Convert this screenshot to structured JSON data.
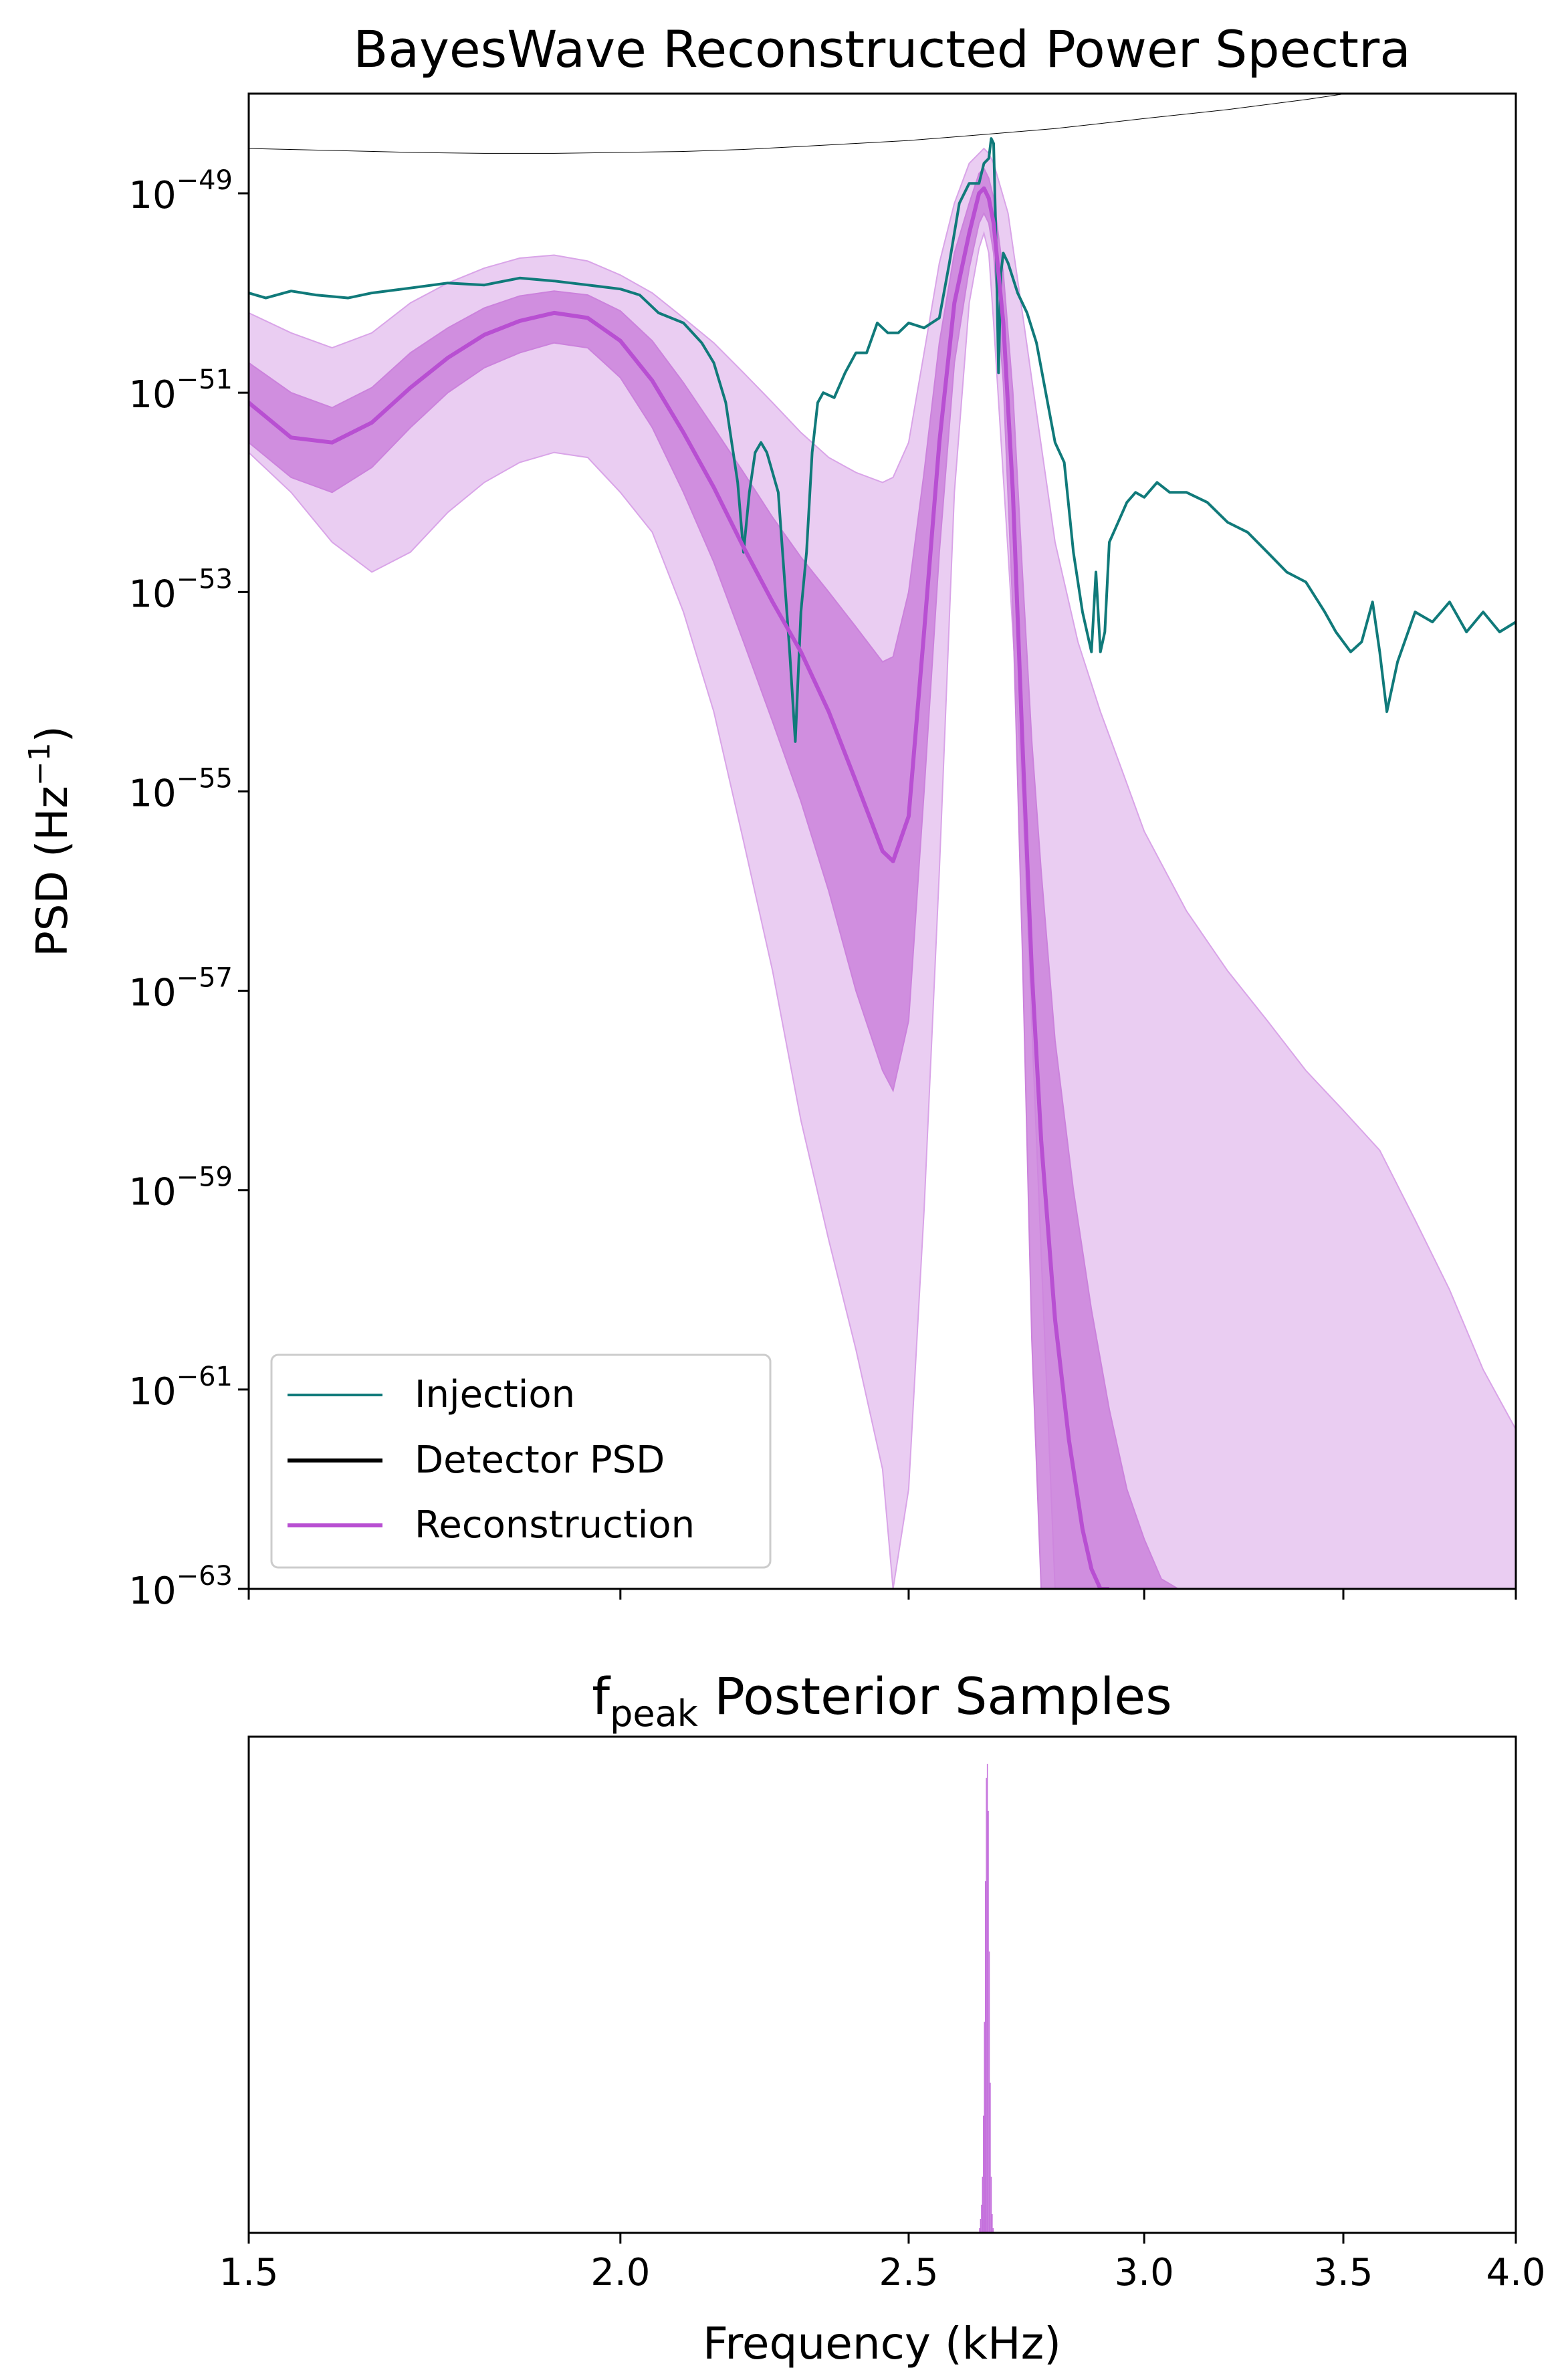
{
  "chart_data": [
    {
      "type": "line",
      "title": "BayesWave Reconstructed Power Spectra",
      "xlabel": "",
      "ylabel": "PSD (Hz⁻¹)",
      "ylabel_main": "PSD (Hz",
      "ylabel_exp": "−1",
      "ylabel_close": ")",
      "xscale": "log",
      "yscale": "log",
      "xlim": [
        1.5,
        4.0
      ],
      "ylim_log10": [
        -63,
        -48
      ],
      "y_ticks": [
        {
          "exp": -49,
          "base": "10",
          "sup": "−49"
        },
        {
          "exp": -51,
          "base": "10",
          "sup": "−51"
        },
        {
          "exp": -53,
          "base": "10",
          "sup": "−53"
        },
        {
          "exp": -55,
          "base": "10",
          "sup": "−55"
        },
        {
          "exp": -57,
          "base": "10",
          "sup": "−57"
        },
        {
          "exp": -59,
          "base": "10",
          "sup": "−59"
        },
        {
          "exp": -61,
          "base": "10",
          "sup": "−61"
        },
        {
          "exp": -63,
          "base": "10",
          "sup": "−63"
        }
      ],
      "legend_position": "lower-left",
      "legend": [
        {
          "label": "Injection",
          "color": "#107a7a",
          "lw": 4
        },
        {
          "label": "Detector PSD",
          "color": "#000000",
          "lw": 6
        },
        {
          "label": "Reconstruction",
          "color": "#b84fd2",
          "lw": 6
        }
      ],
      "series": [
        {
          "name": "Detector PSD",
          "color": "#000000",
          "x": [
            1.5,
            1.6,
            1.7,
            1.8,
            1.9,
            2.0,
            2.1,
            2.2,
            2.3,
            2.4,
            2.5,
            2.6,
            2.7,
            2.8,
            2.9,
            3.0,
            3.2,
            3.4,
            3.6,
            3.8,
            4.0
          ],
          "log10_y": [
            -48.55,
            -48.57,
            -48.59,
            -48.6,
            -48.6,
            -48.59,
            -48.58,
            -48.56,
            -48.53,
            -48.5,
            -48.47,
            -48.43,
            -48.39,
            -48.35,
            -48.3,
            -48.25,
            -48.16,
            -48.06,
            -47.95,
            -47.84,
            -47.72
          ]
        },
        {
          "name": "Injection",
          "color": "#107a7a",
          "x": [
            1.5,
            1.52,
            1.55,
            1.58,
            1.62,
            1.65,
            1.7,
            1.75,
            1.8,
            1.85,
            1.9,
            1.95,
            2.0,
            2.03,
            2.06,
            2.1,
            2.13,
            2.15,
            2.17,
            2.19,
            2.2,
            2.21,
            2.22,
            2.23,
            2.24,
            2.25,
            2.26,
            2.27,
            2.28,
            2.29,
            2.3,
            2.31,
            2.315,
            2.32,
            2.33,
            2.34,
            2.36,
            2.38,
            2.4,
            2.42,
            2.44,
            2.46,
            2.48,
            2.5,
            2.53,
            2.56,
            2.58,
            2.6,
            2.62,
            2.64,
            2.65,
            2.66,
            2.665,
            2.67,
            2.675,
            2.68,
            2.685,
            2.69,
            2.7,
            2.72,
            2.74,
            2.76,
            2.78,
            2.8,
            2.82,
            2.84,
            2.86,
            2.88,
            2.89,
            2.9,
            2.91,
            2.92,
            2.94,
            2.96,
            2.98,
            3.0,
            3.03,
            3.06,
            3.1,
            3.15,
            3.2,
            3.25,
            3.3,
            3.35,
            3.4,
            3.45,
            3.48,
            3.52,
            3.55,
            3.58,
            3.6,
            3.62,
            3.65,
            3.7,
            3.75,
            3.8,
            3.85,
            3.9,
            3.95,
            4.0
          ],
          "log10_y": [
            -50.0,
            -50.05,
            -49.98,
            -50.02,
            -50.05,
            -50.0,
            -49.95,
            -49.9,
            -49.92,
            -49.85,
            -49.88,
            -49.92,
            -49.96,
            -50.02,
            -50.2,
            -50.3,
            -50.5,
            -50.7,
            -51.1,
            -51.9,
            -52.6,
            -52.0,
            -51.6,
            -51.5,
            -51.6,
            -51.8,
            -52.0,
            -52.8,
            -53.6,
            -54.5,
            -53.2,
            -52.6,
            -52.1,
            -51.6,
            -51.1,
            -51.0,
            -51.05,
            -50.8,
            -50.6,
            -50.6,
            -50.3,
            -50.4,
            -50.4,
            -50.3,
            -50.35,
            -50.25,
            -49.7,
            -49.1,
            -48.9,
            -48.9,
            -48.7,
            -48.65,
            -48.45,
            -48.5,
            -49.5,
            -50.8,
            -49.8,
            -49.6,
            -49.7,
            -50.0,
            -50.2,
            -50.5,
            -51.0,
            -51.5,
            -51.7,
            -52.6,
            -53.2,
            -53.6,
            -52.8,
            -53.6,
            -53.4,
            -52.5,
            -52.3,
            -52.1,
            -52.0,
            -52.05,
            -51.9,
            -52.0,
            -52.0,
            -52.1,
            -52.3,
            -52.4,
            -52.6,
            -52.8,
            -52.9,
            -53.2,
            -53.4,
            -53.6,
            -53.5,
            -53.1,
            -53.6,
            -54.2,
            -53.7,
            -53.2,
            -53.3,
            -53.1,
            -53.4,
            -53.2,
            -53.4,
            -53.3
          ],
          "lw": 4
        },
        {
          "name": "Reconstruction",
          "color": "#b84fd2",
          "x": [
            1.5,
            1.55,
            1.6,
            1.65,
            1.7,
            1.75,
            1.8,
            1.85,
            1.9,
            1.95,
            2.0,
            2.05,
            2.1,
            2.15,
            2.2,
            2.25,
            2.3,
            2.35,
            2.4,
            2.45,
            2.47,
            2.5,
            2.53,
            2.56,
            2.59,
            2.62,
            2.64,
            2.65,
            2.66,
            2.67,
            2.69,
            2.71,
            2.73,
            2.75,
            2.77,
            2.8,
            2.83,
            2.86,
            2.88,
            2.9,
            2.92
          ],
          "log10_y": [
            -51.1,
            -51.45,
            -51.5,
            -51.3,
            -50.95,
            -50.65,
            -50.42,
            -50.28,
            -50.2,
            -50.25,
            -50.48,
            -50.88,
            -51.4,
            -51.95,
            -52.55,
            -53.1,
            -53.6,
            -54.2,
            -54.9,
            -55.6,
            -55.7,
            -55.25,
            -53.4,
            -51.5,
            -50.1,
            -49.4,
            -49.0,
            -48.95,
            -49.05,
            -49.3,
            -50.3,
            -52.0,
            -54.5,
            -56.8,
            -58.5,
            -60.3,
            -61.5,
            -62.4,
            -62.8,
            -63.0,
            -63.0
          ],
          "lw": 6
        }
      ],
      "bands": [
        {
          "name": "90% credible interval",
          "color": "#d9a4e8",
          "x": [
            1.5,
            1.55,
            1.6,
            1.65,
            1.7,
            1.75,
            1.8,
            1.85,
            1.9,
            1.95,
            2.0,
            2.05,
            2.1,
            2.15,
            2.2,
            2.25,
            2.3,
            2.35,
            2.4,
            2.45,
            2.47,
            2.5,
            2.53,
            2.56,
            2.59,
            2.62,
            2.64,
            2.65,
            2.66,
            2.67,
            2.7,
            2.73,
            2.76,
            2.8,
            2.85,
            2.9,
            2.95,
            3.0,
            3.1,
            3.2,
            3.3,
            3.4,
            3.5,
            3.6,
            3.7,
            3.8,
            3.9,
            4.0
          ],
          "log10_upper": [
            -50.2,
            -50.4,
            -50.55,
            -50.4,
            -50.1,
            -49.9,
            -49.75,
            -49.65,
            -49.62,
            -49.68,
            -49.82,
            -50.0,
            -50.25,
            -50.5,
            -50.8,
            -51.1,
            -51.4,
            -51.65,
            -51.8,
            -51.9,
            -51.85,
            -51.5,
            -50.6,
            -49.7,
            -49.1,
            -48.7,
            -48.6,
            -48.55,
            -48.6,
            -48.7,
            -49.2,
            -50.2,
            -51.2,
            -52.5,
            -53.5,
            -54.2,
            -54.8,
            -55.4,
            -56.2,
            -56.8,
            -57.3,
            -57.8,
            -58.2,
            -58.6,
            -59.3,
            -60.0,
            -60.8,
            -61.4
          ],
          "log10_lower": [
            -51.6,
            -52.0,
            -52.5,
            -52.8,
            -52.6,
            -52.2,
            -51.9,
            -51.7,
            -51.6,
            -51.65,
            -52.0,
            -52.4,
            -53.2,
            -54.2,
            -55.5,
            -56.8,
            -58.3,
            -59.5,
            -60.6,
            -61.8,
            -63.0,
            -62.0,
            -59.2,
            -55.8,
            -52.0,
            -50.1,
            -49.55,
            -49.4,
            -49.6,
            -50.3,
            -52.6,
            -55.0,
            -58.5,
            -63.0,
            -63.0,
            -63.0,
            -63.0,
            -63.0,
            -63.0,
            -63.0,
            -63.0,
            -63.0,
            -63.0,
            -63.0,
            -63.0,
            -63.0,
            -63.0,
            -63.0
          ]
        },
        {
          "name": "50% credible interval",
          "color": "#cb82dc",
          "x": [
            1.5,
            1.55,
            1.6,
            1.65,
            1.7,
            1.75,
            1.8,
            1.85,
            1.9,
            1.95,
            2.0,
            2.05,
            2.1,
            2.15,
            2.2,
            2.25,
            2.3,
            2.35,
            2.4,
            2.45,
            2.47,
            2.5,
            2.53,
            2.56,
            2.59,
            2.62,
            2.64,
            2.65,
            2.66,
            2.67,
            2.69,
            2.71,
            2.73,
            2.75,
            2.77,
            2.8,
            2.84,
            2.88,
            2.92,
            2.96,
            3.0,
            3.04,
            3.08
          ],
          "log10_upper": [
            -50.7,
            -51.0,
            -51.15,
            -50.95,
            -50.6,
            -50.35,
            -50.15,
            -50.03,
            -49.98,
            -50.02,
            -50.18,
            -50.48,
            -50.9,
            -51.35,
            -51.8,
            -52.25,
            -52.65,
            -53.0,
            -53.35,
            -53.7,
            -53.65,
            -53.0,
            -51.8,
            -50.5,
            -49.6,
            -49.1,
            -48.8,
            -48.75,
            -48.85,
            -49.05,
            -49.8,
            -51.0,
            -52.8,
            -54.5,
            -55.8,
            -57.5,
            -59.0,
            -60.2,
            -61.2,
            -62.0,
            -62.5,
            -62.9,
            -63.0
          ],
          "log10_lower": [
            -51.5,
            -51.85,
            -52.0,
            -51.75,
            -51.35,
            -51.0,
            -50.75,
            -50.6,
            -50.5,
            -50.55,
            -50.85,
            -51.35,
            -52.0,
            -52.7,
            -53.5,
            -54.3,
            -55.1,
            -56.0,
            -57.0,
            -57.8,
            -58.0,
            -57.3,
            -55.0,
            -52.6,
            -50.7,
            -49.75,
            -49.3,
            -49.2,
            -49.3,
            -49.6,
            -50.9,
            -53.2,
            -56.6,
            -60.5,
            -63.0,
            -63.0,
            -63.0,
            -63.0,
            -63.0,
            -63.0,
            -63.0,
            -63.0,
            -63.0
          ]
        }
      ]
    },
    {
      "type": "bar",
      "title_main": "f",
      "title_sub": "peak",
      "title_rest": " Posterior Samples",
      "xlabel": "Frequency (kHz)",
      "ylabel": "",
      "xscale": "log",
      "xlim": [
        1.5,
        4.0
      ],
      "x_ticks": [
        "1.5",
        "2.0",
        "2.5",
        "3.0",
        "3.5",
        "4.0"
      ],
      "x_tick_values": [
        1.5,
        2.0,
        2.5,
        3.0,
        3.5,
        4.0
      ],
      "color": "#c46fdc",
      "histogram": {
        "bin_edges": [
          2.64,
          2.642,
          2.644,
          2.646,
          2.648,
          2.65,
          2.652,
          2.654,
          2.656,
          2.658,
          2.66,
          2.662,
          2.664,
          2.666,
          2.668,
          2.67
        ],
        "relative_counts": [
          0.01,
          0.03,
          0.06,
          0.12,
          0.25,
          0.45,
          0.75,
          0.97,
          1.0,
          0.9,
          0.6,
          0.32,
          0.12,
          0.04,
          0.01
        ]
      }
    }
  ]
}
